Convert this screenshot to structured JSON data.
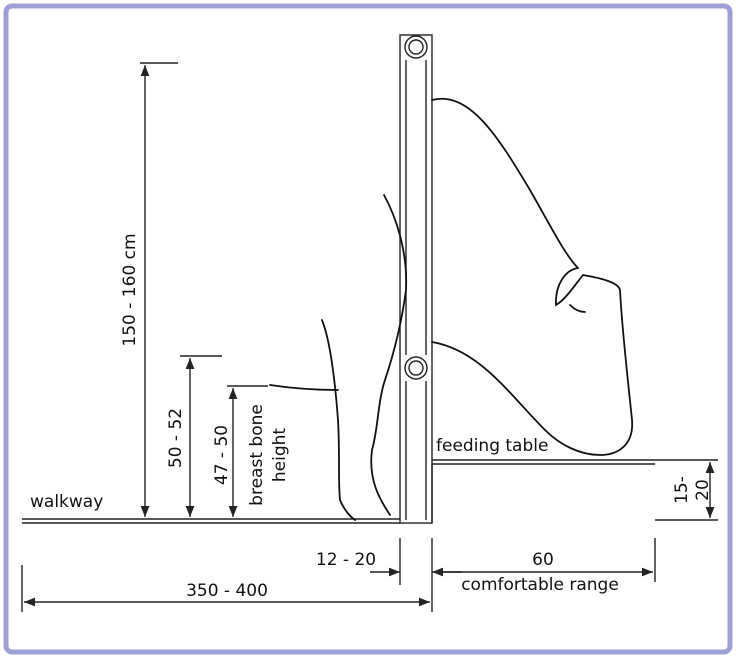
{
  "labels": {
    "walkway": "walkway",
    "height_total": "150 - 160 cm",
    "height_rail": "50 - 52",
    "height_breast": "47 - 50",
    "breast_bone": [
      "breast bone",
      "height"
    ],
    "feeding_table": "feeding table",
    "table_height": [
      "15-",
      "20"
    ],
    "post_offset": "12 - 20",
    "reach": "60",
    "reach_note": "comfortable range",
    "walkway_width": "350 - 400"
  }
}
